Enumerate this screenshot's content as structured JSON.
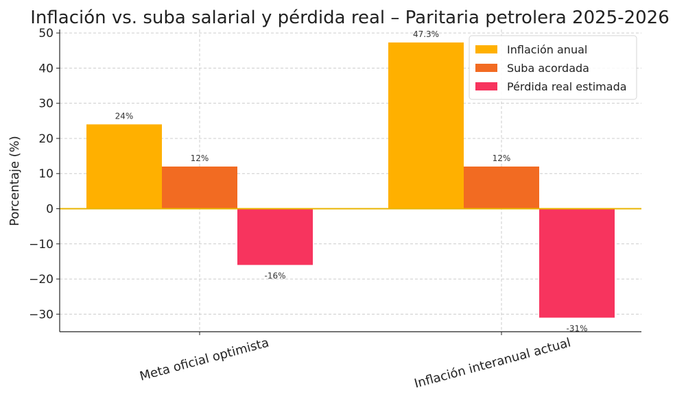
{
  "chart_data": {
    "type": "bar",
    "title": "Inflación vs. suba salarial y pérdida real – Paritaria petrolera 2025-2026",
    "xlabel": "",
    "ylabel": "Porcentaje (%)",
    "ylim": [
      -35,
      51
    ],
    "yticks": [
      50,
      40,
      30,
      20,
      10,
      0,
      -10,
      -20,
      -30
    ],
    "ytick_labels": [
      "50",
      "40",
      "30",
      "20",
      "10",
      "0",
      "−10",
      "−20",
      "−30"
    ],
    "grid": true,
    "legend_position": "top-right",
    "categories": [
      "Meta oficial optimista",
      "Inflación interanual actual"
    ],
    "series": [
      {
        "name": "Inflación anual",
        "color": "#FFB000",
        "values": [
          24,
          47.3
        ],
        "labels": [
          "24%",
          "47.3%"
        ]
      },
      {
        "name": "Suba acordada",
        "color": "#F26B22",
        "values": [
          12,
          12
        ],
        "labels": [
          "12%",
          "12%"
        ]
      },
      {
        "name": "Pérdida real estimada",
        "color": "#F7345E",
        "values": [
          -16,
          -31
        ],
        "labels": [
          "-16%",
          "-31%"
        ]
      }
    ],
    "zero_line_color": "#E8B400"
  }
}
